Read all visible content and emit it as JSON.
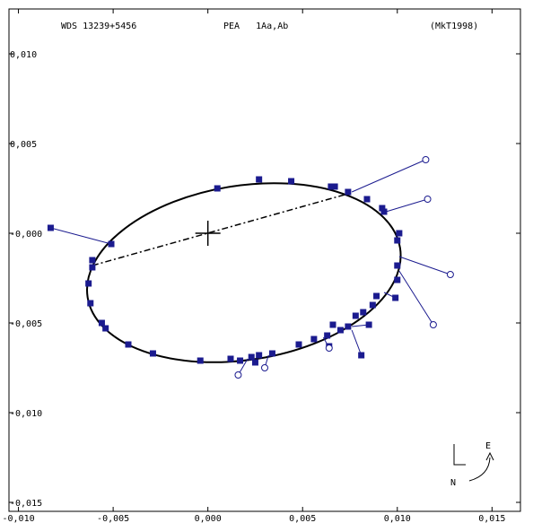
{
  "header": {
    "left": "WDS 13239+5456",
    "center": "PEA   1Aa,Ab",
    "right": "(MkT1998)"
  },
  "compass": {
    "east": "E",
    "north": "N"
  },
  "chart_data": {
    "type": "scatter",
    "title": "",
    "xlim": [
      -0.0105,
      0.0165
    ],
    "ylim": [
      -0.0155,
      0.0125
    ],
    "x_ticks": [
      -0.01,
      -0.005,
      0.0,
      0.005,
      0.01,
      0.015
    ],
    "x_tick_labels": [
      "-0,010",
      "-0,005",
      "0,000",
      "0,005",
      "0,010",
      "0,015"
    ],
    "y_ticks": [
      0.01,
      0.005,
      0.0,
      -0.005,
      -0.01,
      -0.015
    ],
    "y_tick_labels": [
      "0,010",
      "0,005",
      "-0,000",
      "-0,005",
      "-0,010",
      "-0,015"
    ],
    "primary": [
      0.0,
      0.0
    ],
    "orbit": {
      "center": [
        0.0019,
        -0.0022
      ],
      "a": 0.00835,
      "b": 0.0046,
      "theta_deg": -9
    },
    "line_of_nodes": [
      [
        -0.0061,
        -0.0018
      ],
      [
        0.0074,
        0.0022
      ]
    ],
    "colors": {
      "observation": "#1b1b8f",
      "orbit": "#000000"
    },
    "observations": [
      {
        "x": -0.0083,
        "y": 0.0003,
        "fx": -0.0051,
        "fy": -0.0006,
        "m": "s"
      },
      {
        "x": -0.0051,
        "y": -0.0006,
        "fx": -0.0051,
        "fy": -0.0006,
        "m": "s"
      },
      {
        "x": -0.0061,
        "y": -0.0015,
        "fx": -0.0061,
        "fy": -0.0015,
        "m": "s"
      },
      {
        "x": -0.0061,
        "y": -0.0019,
        "fx": -0.0061,
        "fy": -0.0019,
        "m": "s"
      },
      {
        "x": -0.0063,
        "y": -0.0028,
        "fx": -0.0063,
        "fy": -0.0028,
        "m": "s"
      },
      {
        "x": -0.0062,
        "y": -0.0039,
        "fx": -0.0062,
        "fy": -0.0039,
        "m": "s"
      },
      {
        "x": -0.0056,
        "y": -0.005,
        "fx": -0.0056,
        "fy": -0.005,
        "m": "s"
      },
      {
        "x": -0.0054,
        "y": -0.0053,
        "fx": -0.0054,
        "fy": -0.0053,
        "m": "s"
      },
      {
        "x": -0.0042,
        "y": -0.0062,
        "fx": -0.0042,
        "fy": -0.0062,
        "m": "s"
      },
      {
        "x": -0.0029,
        "y": -0.0067,
        "fx": -0.0029,
        "fy": -0.0067,
        "m": "s"
      },
      {
        "x": -0.0004,
        "y": -0.0071,
        "fx": -0.0004,
        "fy": -0.0071,
        "m": "s"
      },
      {
        "x": 0.0012,
        "y": -0.007,
        "fx": 0.0012,
        "fy": -0.007,
        "m": "s"
      },
      {
        "x": 0.0017,
        "y": -0.0071,
        "fx": 0.0017,
        "fy": -0.0071,
        "m": "s"
      },
      {
        "x": 0.0023,
        "y": -0.0069,
        "fx": 0.0023,
        "fy": -0.0069,
        "m": "s"
      },
      {
        "x": 0.0025,
        "y": -0.0072,
        "fx": 0.0025,
        "fy": -0.0072,
        "m": "s"
      },
      {
        "x": 0.0027,
        "y": -0.0068,
        "fx": 0.0027,
        "fy": -0.0068,
        "m": "s"
      },
      {
        "x": 0.0034,
        "y": -0.0067,
        "fx": 0.0034,
        "fy": -0.0067,
        "m": "s"
      },
      {
        "x": 0.0048,
        "y": -0.0062,
        "fx": 0.0048,
        "fy": -0.0062,
        "m": "s"
      },
      {
        "x": 0.0056,
        "y": -0.0059,
        "fx": 0.0056,
        "fy": -0.0059,
        "m": "s"
      },
      {
        "x": 0.0063,
        "y": -0.0057,
        "fx": 0.0063,
        "fy": -0.0057,
        "m": "s"
      },
      {
        "x": 0.0064,
        "y": -0.0063,
        "fx": 0.0064,
        "fy": -0.0063,
        "m": "s"
      },
      {
        "x": 0.0066,
        "y": -0.0051,
        "fx": 0.0066,
        "fy": -0.0051,
        "m": "s"
      },
      {
        "x": 0.007,
        "y": -0.0054,
        "fx": 0.007,
        "fy": -0.0054,
        "m": "s"
      },
      {
        "x": 0.0074,
        "y": -0.0052,
        "fx": 0.0074,
        "fy": -0.0052,
        "m": "s"
      },
      {
        "x": 0.0078,
        "y": -0.0046,
        "fx": 0.0078,
        "fy": -0.0046,
        "m": "s"
      },
      {
        "x": 0.0081,
        "y": -0.0068,
        "fx": 0.0076,
        "fy": -0.0054,
        "m": "s"
      },
      {
        "x": 0.0082,
        "y": -0.0044,
        "fx": 0.0082,
        "fy": -0.0044,
        "m": "s"
      },
      {
        "x": 0.0085,
        "y": -0.0051,
        "fx": 0.0076,
        "fy": -0.0052,
        "m": "s"
      },
      {
        "x": 0.0087,
        "y": -0.004,
        "fx": 0.0087,
        "fy": -0.004,
        "m": "s"
      },
      {
        "x": 0.0089,
        "y": -0.0035,
        "fx": 0.0089,
        "fy": -0.0035,
        "m": "s"
      },
      {
        "x": 0.0099,
        "y": -0.0036,
        "fx": 0.0093,
        "fy": -0.0033,
        "m": "s"
      },
      {
        "x": 0.01,
        "y": -0.0026,
        "fx": 0.01,
        "fy": -0.0026,
        "m": "s"
      },
      {
        "x": 0.01,
        "y": -0.0018,
        "fx": 0.01,
        "fy": -0.0018,
        "m": "s"
      },
      {
        "x": 0.01,
        "y": -0.0004,
        "fx": 0.01,
        "fy": -0.0004,
        "m": "s"
      },
      {
        "x": 0.0101,
        "y": 0.0,
        "fx": 0.0101,
        "fy": 0.0,
        "m": "s"
      },
      {
        "x": 0.0092,
        "y": 0.0014,
        "fx": 0.0092,
        "fy": 0.0014,
        "m": "s"
      },
      {
        "x": 0.0093,
        "y": 0.0012,
        "fx": 0.0093,
        "fy": 0.0012,
        "m": "s"
      },
      {
        "x": 0.0084,
        "y": 0.0019,
        "fx": 0.0084,
        "fy": 0.0019,
        "m": "s"
      },
      {
        "x": 0.0074,
        "y": 0.0023,
        "fx": 0.0074,
        "fy": 0.0023,
        "m": "s"
      },
      {
        "x": 0.0067,
        "y": 0.0026,
        "fx": 0.0067,
        "fy": 0.0026,
        "m": "s"
      },
      {
        "x": 0.0065,
        "y": 0.0026,
        "fx": 0.0065,
        "fy": 0.0026,
        "m": "s"
      },
      {
        "x": 0.0044,
        "y": 0.0029,
        "fx": 0.0044,
        "fy": 0.0029,
        "m": "s"
      },
      {
        "x": 0.0027,
        "y": 0.003,
        "fx": 0.0027,
        "fy": 0.003,
        "m": "s"
      },
      {
        "x": 0.0005,
        "y": 0.0025,
        "fx": 0.0005,
        "fy": 0.0025,
        "m": "s"
      },
      {
        "x": 0.0116,
        "y": 0.0019,
        "fx": 0.0094,
        "fy": 0.0012,
        "m": "o"
      },
      {
        "x": 0.0115,
        "y": 0.0041,
        "fx": 0.0076,
        "fy": 0.0023,
        "m": "o"
      },
      {
        "x": 0.0128,
        "y": -0.0023,
        "fx": 0.0101,
        "fy": -0.0013,
        "m": "o"
      },
      {
        "x": 0.0119,
        "y": -0.0051,
        "fx": 0.0101,
        "fy": -0.0021,
        "m": "o"
      },
      {
        "x": 0.0064,
        "y": -0.0064,
        "fx": 0.0061,
        "fy": -0.0058,
        "m": "o"
      },
      {
        "x": 0.003,
        "y": -0.0075,
        "fx": 0.0032,
        "fy": -0.0068,
        "m": "o"
      },
      {
        "x": 0.0016,
        "y": -0.0079,
        "fx": 0.0021,
        "fy": -0.007,
        "m": "o"
      }
    ]
  }
}
